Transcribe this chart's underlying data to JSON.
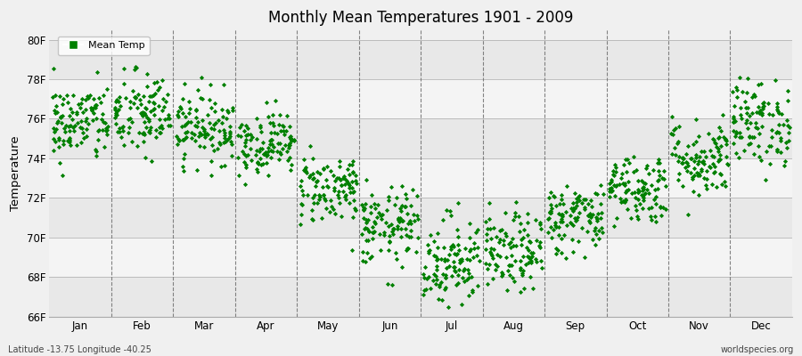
{
  "title": "Monthly Mean Temperatures 1901 - 2009",
  "ylabel": "Temperature",
  "xlabel_labels": [
    "Jan",
    "Feb",
    "Mar",
    "Apr",
    "May",
    "Jun",
    "Jul",
    "Aug",
    "Sep",
    "Oct",
    "Nov",
    "Dec"
  ],
  "ylim": [
    66,
    80.5
  ],
  "ytick_values": [
    66,
    68,
    70,
    72,
    74,
    76,
    78,
    80
  ],
  "ytick_labels": [
    "66F",
    "68F",
    "70F",
    "72F",
    "74F",
    "76F",
    "78F",
    "80F"
  ],
  "dot_color": "#008000",
  "bg_color": "#f0f0f0",
  "band_colors": [
    "#e8e8e8",
    "#f4f4f4"
  ],
  "vline_color": "#666666",
  "footer_left": "Latitude -13.75 Longitude -40.25",
  "footer_right": "worldspecies.org",
  "legend_label": "Mean Temp",
  "num_years": 109,
  "monthly_means": [
    75.8,
    76.2,
    75.6,
    74.8,
    72.5,
    70.5,
    68.8,
    69.2,
    71.0,
    72.5,
    74.0,
    75.8
  ],
  "monthly_stds": [
    1.0,
    1.1,
    0.9,
    0.8,
    0.9,
    1.0,
    1.2,
    1.0,
    0.9,
    0.9,
    1.0,
    1.1
  ],
  "seed": 42,
  "fig_width": 9.0,
  "fig_height": 4.0,
  "dpi": 100
}
